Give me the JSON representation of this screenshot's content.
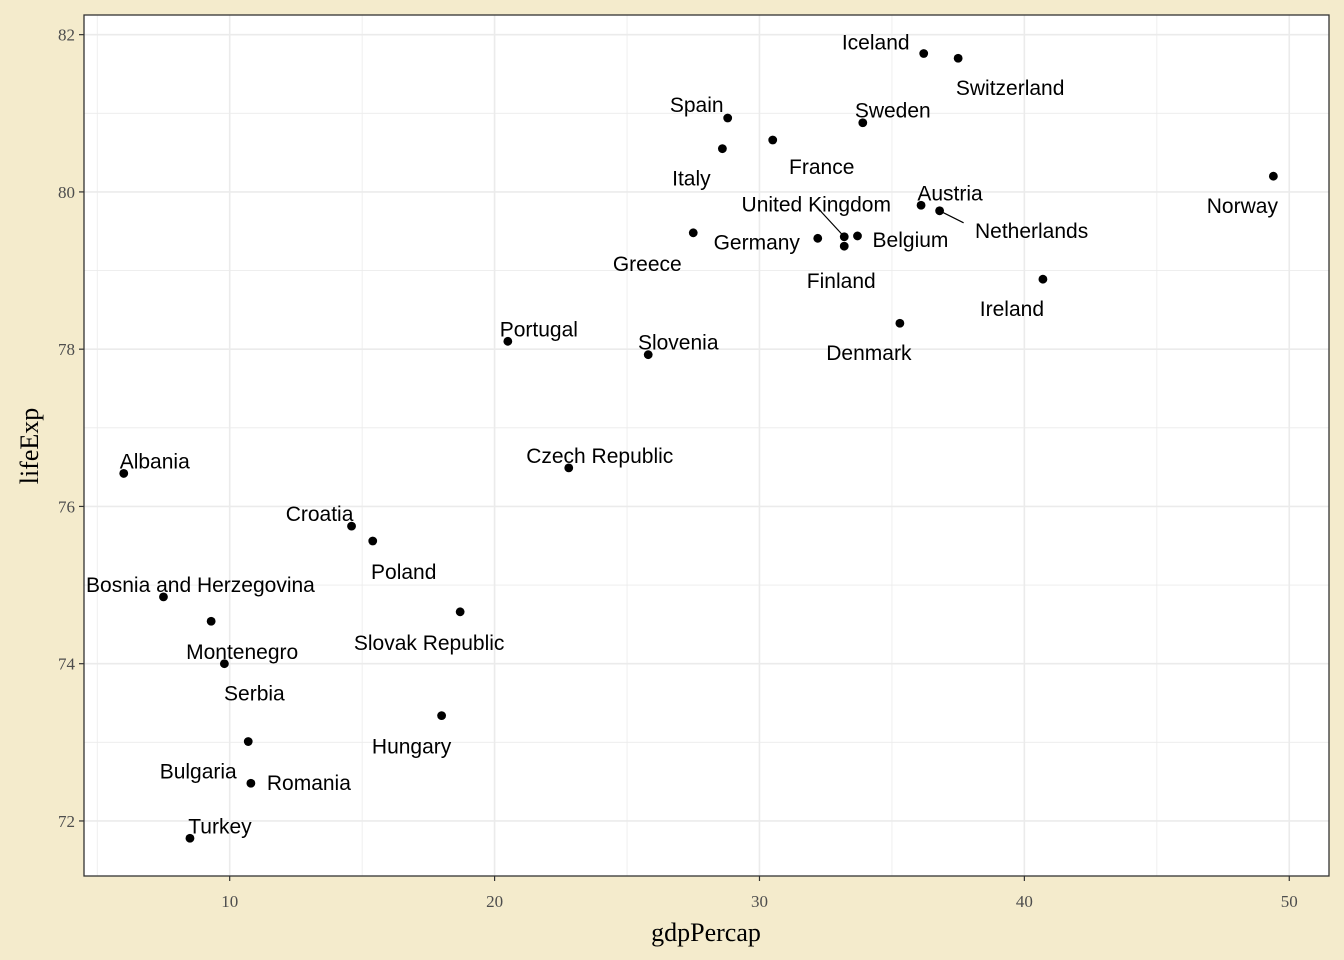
{
  "chart_data": {
    "type": "scatter",
    "xlabel": "gdpPercap",
    "ylabel": "lifeExp",
    "xlim": [
      4.5,
      51.5
    ],
    "ylim": [
      71.3,
      82.25
    ],
    "x_ticks": [
      10,
      20,
      30,
      40,
      50
    ],
    "y_ticks": [
      72,
      74,
      76,
      78,
      80,
      82
    ],
    "grid": true,
    "colors": {
      "background": "#f4ebcc",
      "panel": "#ffffff",
      "grid": "#ebebeb",
      "point": "#000000",
      "border": "#333333"
    },
    "points": [
      {
        "label": "Iceland",
        "x": 36.2,
        "y": 81.76
      },
      {
        "label": "Switzerland",
        "x": 37.5,
        "y": 81.7
      },
      {
        "label": "Spain",
        "x": 28.8,
        "y": 80.94
      },
      {
        "label": "Sweden",
        "x": 33.9,
        "y": 80.88
      },
      {
        "label": "France",
        "x": 30.5,
        "y": 80.66
      },
      {
        "label": "Italy",
        "x": 28.6,
        "y": 80.55
      },
      {
        "label": "Norway",
        "x": 49.4,
        "y": 80.2
      },
      {
        "label": "Austria",
        "x": 36.1,
        "y": 79.83
      },
      {
        "label": "Netherlands",
        "x": 36.8,
        "y": 79.76
      },
      {
        "label": "Greece",
        "x": 27.5,
        "y": 79.48
      },
      {
        "label": "Belgium",
        "x": 33.7,
        "y": 79.44
      },
      {
        "label": "Germany",
        "x": 32.2,
        "y": 79.41
      },
      {
        "label": "United Kingdom",
        "x": 33.2,
        "y": 79.43
      },
      {
        "label": "Finland",
        "x": 33.2,
        "y": 79.31
      },
      {
        "label": "Ireland",
        "x": 40.7,
        "y": 78.89
      },
      {
        "label": "Denmark",
        "x": 35.3,
        "y": 78.33
      },
      {
        "label": "Portugal",
        "x": 20.5,
        "y": 78.1
      },
      {
        "label": "Slovenia",
        "x": 25.8,
        "y": 77.93
      },
      {
        "label": "Czech Republic",
        "x": 22.8,
        "y": 76.49
      },
      {
        "label": "Albania",
        "x": 6.0,
        "y": 76.42
      },
      {
        "label": "Croatia",
        "x": 14.6,
        "y": 75.75
      },
      {
        "label": "Poland",
        "x": 15.4,
        "y": 75.56
      },
      {
        "label": "Bosnia and Herzegovina",
        "x": 7.5,
        "y": 74.85
      },
      {
        "label": "Slovak Republic",
        "x": 18.7,
        "y": 74.66
      },
      {
        "label": "Montenegro",
        "x": 9.3,
        "y": 74.54
      },
      {
        "label": "Serbia",
        "x": 9.8,
        "y": 74.0
      },
      {
        "label": "Hungary",
        "x": 18.0,
        "y": 73.34
      },
      {
        "label": "Bulgaria",
        "x": 10.7,
        "y": 73.01
      },
      {
        "label": "Romania",
        "x": 10.8,
        "y": 72.48
      },
      {
        "label": "Turkey",
        "x": 8.5,
        "y": 71.78
      }
    ]
  }
}
